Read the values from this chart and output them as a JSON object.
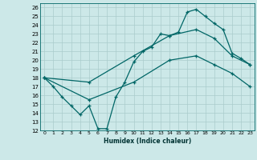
{
  "xlabel": "Humidex (Indice chaleur)",
  "bg_color": "#cce8e8",
  "grid_color": "#aacccc",
  "line_color": "#006666",
  "xlim": [
    -0.5,
    23.5
  ],
  "ylim": [
    12,
    26.5
  ],
  "xticks": [
    0,
    1,
    2,
    3,
    4,
    5,
    6,
    7,
    8,
    9,
    10,
    11,
    12,
    13,
    14,
    15,
    16,
    17,
    18,
    19,
    20,
    21,
    22,
    23
  ],
  "yticks": [
    12,
    13,
    14,
    15,
    16,
    17,
    18,
    19,
    20,
    21,
    22,
    23,
    24,
    25,
    26
  ],
  "line1_x": [
    0,
    1,
    2,
    3,
    4,
    5,
    6,
    7,
    8,
    9,
    10,
    11,
    12,
    13,
    14,
    15,
    16,
    17,
    18,
    19,
    20,
    21,
    22,
    23
  ],
  "line1_y": [
    18,
    17,
    15.8,
    14.8,
    13.8,
    14.8,
    12.2,
    12.2,
    15.8,
    17.5,
    19.8,
    21.0,
    21.5,
    23.0,
    22.8,
    23.2,
    25.5,
    25.8,
    25.0,
    24.2,
    23.5,
    20.8,
    20.2,
    19.5
  ],
  "line2_x": [
    0,
    5,
    10,
    14,
    17,
    19,
    21,
    23
  ],
  "line2_y": [
    18,
    17.5,
    20.5,
    22.8,
    23.5,
    22.5,
    20.5,
    19.5
  ],
  "line3_x": [
    0,
    5,
    10,
    14,
    17,
    19,
    21,
    23
  ],
  "line3_y": [
    18,
    15.5,
    17.5,
    20.0,
    20.5,
    19.5,
    18.5,
    17.0
  ]
}
